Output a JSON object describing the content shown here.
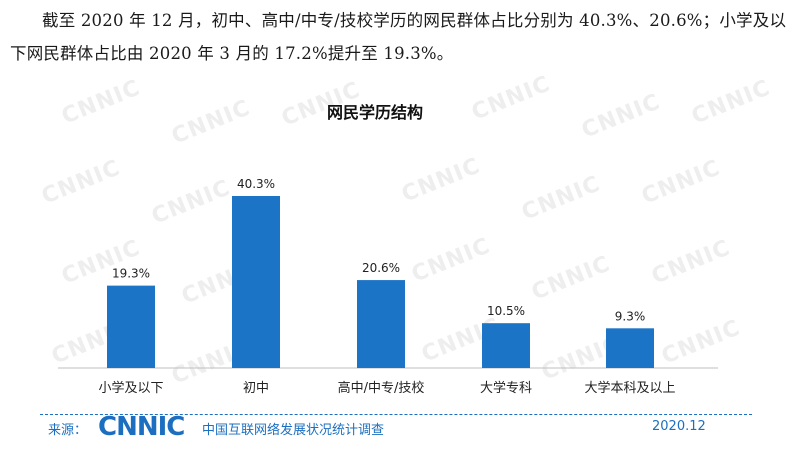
{
  "intro_text": "截至 2020 年 12 月，初中、高中/中专/技校学历的网民群体占比分别为 40.3%、20.6%；小学及以下网民群体占比由 2020 年 3 月的 17.2%提升至 19.3%。",
  "watermark_text": "CNNIC",
  "chart_data": {
    "type": "bar",
    "title": "网民学历结构",
    "categories": [
      "小学及以下",
      "初中",
      "高中/中专/技校",
      "大学专科",
      "大学本科及以上"
    ],
    "values": [
      19.3,
      40.3,
      20.6,
      10.5,
      9.3
    ],
    "value_labels": [
      "19.3%",
      "40.3%",
      "20.6%",
      "10.5%",
      "9.3%"
    ],
    "ylim": [
      0,
      42
    ],
    "bar_color": "#1c74c6",
    "grid": false,
    "legend": "none"
  },
  "footer": {
    "source_label": "来源：",
    "logo_text": "CNNIC",
    "org_name": "中国互联网络发展状况统计调查",
    "date": "2020.12"
  }
}
